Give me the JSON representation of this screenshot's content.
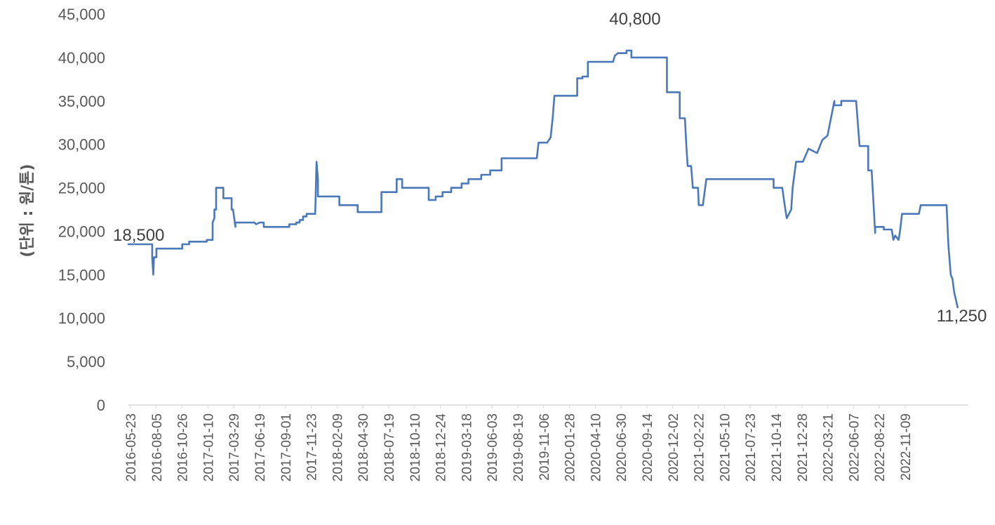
{
  "chart_data": {
    "type": "line",
    "title": "",
    "xlabel": "",
    "ylabel": "(단위 : 원/톤)",
    "ylim": [
      0,
      45000
    ],
    "yticks": [
      0,
      5000,
      10000,
      15000,
      20000,
      25000,
      30000,
      35000,
      40000,
      45000
    ],
    "ytick_labels": [
      "0",
      "5,000",
      "10,000",
      "15,000",
      "20,000",
      "25,000",
      "30,000",
      "35,000",
      "40,000",
      "45,000"
    ],
    "xlim": [
      "2016-05-23",
      "2023-01-20"
    ],
    "xtick_labels": [
      "2016-05-23",
      "2016-08-05",
      "2016-10-26",
      "2017-01-10",
      "2017-03-29",
      "2017-06-19",
      "2017-09-01",
      "2017-11-23",
      "2018-02-09",
      "2018-04-30",
      "2018-07-19",
      "2018-10-10",
      "2018-12-24",
      "2019-03-18",
      "2019-06-03",
      "2019-08-19",
      "2019-11-06",
      "2020-01-28",
      "2020-04-10",
      "2020-06-30",
      "2020-09-14",
      "2020-12-02",
      "2021-02-22",
      "2021-05-10",
      "2021-07-23",
      "2021-10-14",
      "2021-12-28",
      "2022-03-21",
      "2022-06-07",
      "2022-08-22",
      "2022-11-09"
    ],
    "grid": false,
    "legend": "none",
    "series": [
      {
        "color": "#4a78b8",
        "points": [
          [
            "2016-05-23",
            18500
          ],
          [
            "2016-07-31",
            18500
          ],
          [
            "2016-07-31",
            17000
          ],
          [
            "2016-08-03",
            15000
          ],
          [
            "2016-08-05",
            17000
          ],
          [
            "2016-08-12",
            17000
          ],
          [
            "2016-08-12",
            18000
          ],
          [
            "2016-10-26",
            18000
          ],
          [
            "2016-10-26",
            18500
          ],
          [
            "2016-11-15",
            18500
          ],
          [
            "2016-11-15",
            18800
          ],
          [
            "2017-01-05",
            18800
          ],
          [
            "2017-01-05",
            19000
          ],
          [
            "2017-01-22",
            19000
          ],
          [
            "2017-01-22",
            21000
          ],
          [
            "2017-01-27",
            21500
          ],
          [
            "2017-01-27",
            22500
          ],
          [
            "2017-02-01",
            22500
          ],
          [
            "2017-02-01",
            25000
          ],
          [
            "2017-02-22",
            25000
          ],
          [
            "2017-02-22",
            23800
          ],
          [
            "2017-03-18",
            23800
          ],
          [
            "2017-03-18",
            22500
          ],
          [
            "2017-03-22",
            22500
          ],
          [
            "2017-03-29",
            20500
          ],
          [
            "2017-03-29",
            21000
          ],
          [
            "2017-05-23",
            21000
          ],
          [
            "2017-05-28",
            20800
          ],
          [
            "2017-06-07",
            21000
          ],
          [
            "2017-06-19",
            21000
          ],
          [
            "2017-06-19",
            20500
          ],
          [
            "2017-09-01",
            20500
          ],
          [
            "2017-09-01",
            20800
          ],
          [
            "2017-09-21",
            20800
          ],
          [
            "2017-09-21",
            21000
          ],
          [
            "2017-10-01",
            21000
          ],
          [
            "2017-10-01",
            21300
          ],
          [
            "2017-10-11",
            21300
          ],
          [
            "2017-10-11",
            21700
          ],
          [
            "2017-10-21",
            21700
          ],
          [
            "2017-10-21",
            22000
          ],
          [
            "2017-11-15",
            22000
          ],
          [
            "2017-11-19",
            28000
          ],
          [
            "2017-11-23",
            26000
          ],
          [
            "2017-11-23",
            24000
          ],
          [
            "2018-01-24",
            24000
          ],
          [
            "2018-01-24",
            23000
          ],
          [
            "2018-03-18",
            23000
          ],
          [
            "2018-03-18",
            22200
          ],
          [
            "2018-05-26",
            22200
          ],
          [
            "2018-05-26",
            24500
          ],
          [
            "2018-07-09",
            24500
          ],
          [
            "2018-07-09",
            26000
          ],
          [
            "2018-07-25",
            26000
          ],
          [
            "2018-07-25",
            25000
          ],
          [
            "2018-10-10",
            25000
          ],
          [
            "2018-10-10",
            23600
          ],
          [
            "2018-10-30",
            23600
          ],
          [
            "2018-10-30",
            24000
          ],
          [
            "2018-11-19",
            24000
          ],
          [
            "2018-11-19",
            24500
          ],
          [
            "2018-12-14",
            24500
          ],
          [
            "2018-12-14",
            25000
          ],
          [
            "2019-01-13",
            25000
          ],
          [
            "2019-01-13",
            25500
          ],
          [
            "2019-02-02",
            25500
          ],
          [
            "2019-02-02",
            26000
          ],
          [
            "2019-03-11",
            26000
          ],
          [
            "2019-03-11",
            26500
          ],
          [
            "2019-04-06",
            26500
          ],
          [
            "2019-04-06",
            27000
          ],
          [
            "2019-05-09",
            27000
          ],
          [
            "2019-05-09",
            28400
          ],
          [
            "2019-08-19",
            28400
          ],
          [
            "2019-08-24",
            30200
          ],
          [
            "2019-09-18",
            30200
          ],
          [
            "2019-09-28",
            30800
          ],
          [
            "2019-10-04",
            33000
          ],
          [
            "2019-10-09",
            35600
          ],
          [
            "2019-12-14",
            35600
          ],
          [
            "2019-12-14",
            37600
          ],
          [
            "2019-12-29",
            37600
          ],
          [
            "2019-12-29",
            37800
          ],
          [
            "2020-01-14",
            37800
          ],
          [
            "2020-01-14",
            39500
          ],
          [
            "2020-03-27",
            39500
          ],
          [
            "2020-04-01",
            40200
          ],
          [
            "2020-04-10",
            40500
          ],
          [
            "2020-05-05",
            40500
          ],
          [
            "2020-05-05",
            40800
          ],
          [
            "2020-05-19",
            40800
          ],
          [
            "2020-05-19",
            40000
          ],
          [
            "2020-08-30",
            40000
          ],
          [
            "2020-08-30",
            36000
          ],
          [
            "2020-10-06",
            36000
          ],
          [
            "2020-10-06",
            33000
          ],
          [
            "2020-10-21",
            33000
          ],
          [
            "2020-10-25",
            30000
          ],
          [
            "2020-10-29",
            27500
          ],
          [
            "2020-11-08",
            27500
          ],
          [
            "2020-11-13",
            25000
          ],
          [
            "2020-11-28",
            25000
          ],
          [
            "2020-11-30",
            23000
          ],
          [
            "2020-12-12",
            23000
          ],
          [
            "2020-12-22",
            26000
          ],
          [
            "2021-07-05",
            26000
          ],
          [
            "2021-07-05",
            25000
          ],
          [
            "2021-07-30",
            25000
          ],
          [
            "2021-08-06",
            23000
          ],
          [
            "2021-08-12",
            21500
          ],
          [
            "2021-08-25",
            22500
          ],
          [
            "2021-08-29",
            25000
          ],
          [
            "2021-09-08",
            28000
          ],
          [
            "2021-09-28",
            28000
          ],
          [
            "2021-10-14",
            29500
          ],
          [
            "2021-11-08",
            29000
          ],
          [
            "2021-11-23",
            30500
          ],
          [
            "2021-12-08",
            31000
          ],
          [
            "2021-12-18",
            33000
          ],
          [
            "2021-12-28",
            35000
          ],
          [
            "2021-12-28",
            34500
          ],
          [
            "2022-01-17",
            34500
          ],
          [
            "2022-01-17",
            35000
          ],
          [
            "2022-03-01",
            35000
          ],
          [
            "2022-03-11",
            29800
          ],
          [
            "2022-04-05",
            29800
          ],
          [
            "2022-04-05",
            27000
          ],
          [
            "2022-04-15",
            27000
          ],
          [
            "2022-04-25",
            19800
          ],
          [
            "2022-04-25",
            20500
          ],
          [
            "2022-05-20",
            20500
          ],
          [
            "2022-05-20",
            20200
          ],
          [
            "2022-06-12",
            20200
          ],
          [
            "2022-06-17",
            19000
          ],
          [
            "2022-06-22",
            19500
          ],
          [
            "2022-07-02",
            19000
          ],
          [
            "2022-07-06",
            20000
          ],
          [
            "2022-07-12",
            22000
          ],
          [
            "2022-08-30",
            22000
          ],
          [
            "2022-09-04",
            23000
          ],
          [
            "2022-11-18",
            23000
          ],
          [
            "2022-11-23",
            18500
          ],
          [
            "2022-11-30",
            15000
          ],
          [
            "2022-12-05",
            14500
          ],
          [
            "2022-12-10",
            13000
          ],
          [
            "2022-12-20",
            11250
          ]
        ]
      }
    ],
    "annotations": [
      {
        "text": "18,500",
        "x": "2016-05-23",
        "y": 18500
      },
      {
        "text": "40,800",
        "x": "2020-05-05",
        "y": 40800
      },
      {
        "text": "11,250",
        "x": "2022-12-20",
        "y": 11250
      }
    ]
  }
}
